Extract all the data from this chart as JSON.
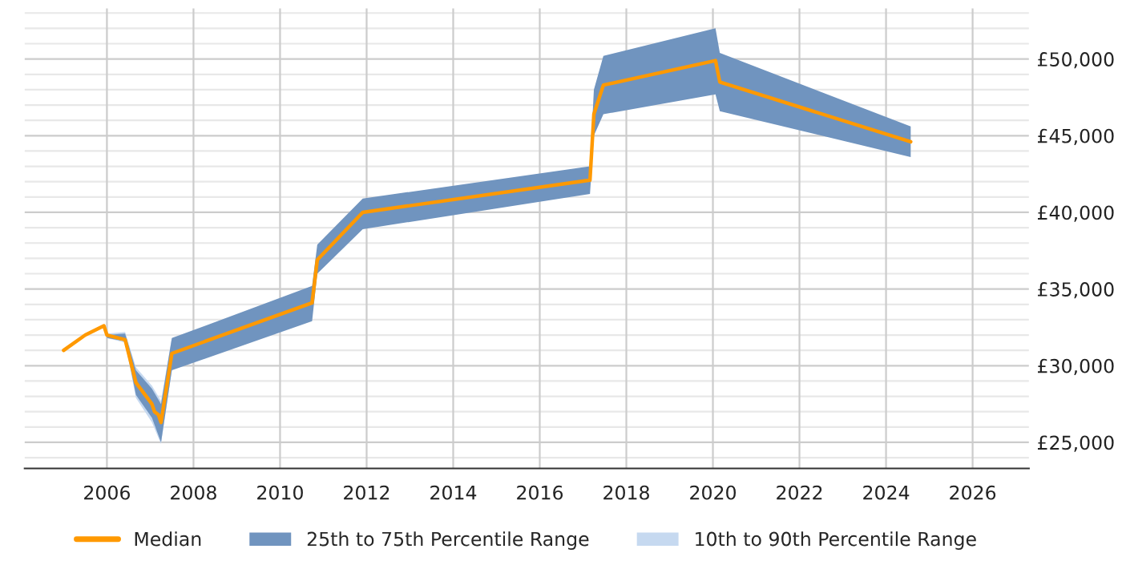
{
  "chart_data": {
    "type": "line",
    "series": [
      {
        "name": "10th to 90th Percentile Range",
        "color": "#c6d9f0",
        "x": [
          2006.0,
          2006.42,
          2006.67,
          2007.04,
          2007.25,
          2007.5
        ],
        "values": [
          null,
          null,
          null,
          null,
          null,
          null
        ],
        "lower": [
          31800,
          31500,
          27900,
          26300,
          24900,
          29700
        ],
        "upper": [
          32100,
          32200,
          29900,
          28700,
          27700,
          31800
        ]
      },
      {
        "name": "25th to 75th Percentile Range",
        "color": "#7094bf",
        "x": [
          2006.0,
          2006.42,
          2006.67,
          2007.04,
          2007.25,
          2007.5,
          2010.74,
          2010.86,
          2011.91,
          2017.16,
          2017.25,
          2017.47,
          2020.06,
          2020.16,
          2024.57
        ],
        "values": [
          null,
          null,
          null,
          null,
          null,
          null,
          null,
          null,
          null,
          null,
          null,
          null,
          null,
          null,
          null
        ],
        "lower": [
          31800,
          31600,
          28100,
          26600,
          25000,
          29700,
          32900,
          36000,
          38900,
          41200,
          45000,
          46400,
          47700,
          46600,
          43600
        ],
        "upper": [
          32000,
          32100,
          29700,
          28500,
          27500,
          31800,
          35200,
          37900,
          40900,
          43000,
          48000,
          50200,
          52000,
          50400,
          45600
        ]
      },
      {
        "name": "Median",
        "color": "#ff9900",
        "x": [
          2005.0,
          2005.5,
          2005.93,
          2006.0,
          2006.42,
          2006.67,
          2007.04,
          2007.1,
          2007.19,
          2007.25,
          2007.5,
          2010.74,
          2010.86,
          2011.91,
          2017.16,
          2017.25,
          2017.47,
          2020.06,
          2020.16,
          2024.57
        ],
        "values": [
          31000,
          32000,
          32600,
          32000,
          31700,
          28900,
          27500,
          27000,
          26800,
          26300,
          30800,
          34100,
          36900,
          40000,
          42100,
          46400,
          48300,
          49900,
          48500,
          44600
        ]
      }
    ],
    "xlim": [
      2004.1,
      2027.3
    ],
    "xticks": [
      2006,
      2008,
      2010,
      2012,
      2014,
      2016,
      2018,
      2020,
      2022,
      2024,
      2026
    ],
    "ylim": [
      23300,
      53300
    ],
    "yticks": [
      {
        "value": 24000,
        "label": null
      },
      {
        "value": 25000,
        "label": "£25,000"
      },
      {
        "value": 26000,
        "label": null
      },
      {
        "value": 27000,
        "label": null
      },
      {
        "value": 28000,
        "label": null
      },
      {
        "value": 29000,
        "label": null
      },
      {
        "value": 30000,
        "label": "£30,000"
      },
      {
        "value": 31000,
        "label": null
      },
      {
        "value": 32000,
        "label": null
      },
      {
        "value": 33000,
        "label": null
      },
      {
        "value": 34000,
        "label": null
      },
      {
        "value": 35000,
        "label": "£35,000"
      },
      {
        "value": 36000,
        "label": null
      },
      {
        "value": 37000,
        "label": null
      },
      {
        "value": 38000,
        "label": null
      },
      {
        "value": 39000,
        "label": null
      },
      {
        "value": 40000,
        "label": "£40,000"
      },
      {
        "value": 41000,
        "label": null
      },
      {
        "value": 42000,
        "label": null
      },
      {
        "value": 43000,
        "label": null
      },
      {
        "value": 44000,
        "label": null
      },
      {
        "value": 45000,
        "label": "£45,000"
      },
      {
        "value": 46000,
        "label": null
      },
      {
        "value": 47000,
        "label": null
      },
      {
        "value": 48000,
        "label": null
      },
      {
        "value": 49000,
        "label": null
      },
      {
        "value": 50000,
        "label": "£50,000"
      },
      {
        "value": 51000,
        "label": null
      },
      {
        "value": 52000,
        "label": null
      },
      {
        "value": 53000,
        "label": null
      }
    ],
    "grid": true,
    "legend": "bottom"
  }
}
